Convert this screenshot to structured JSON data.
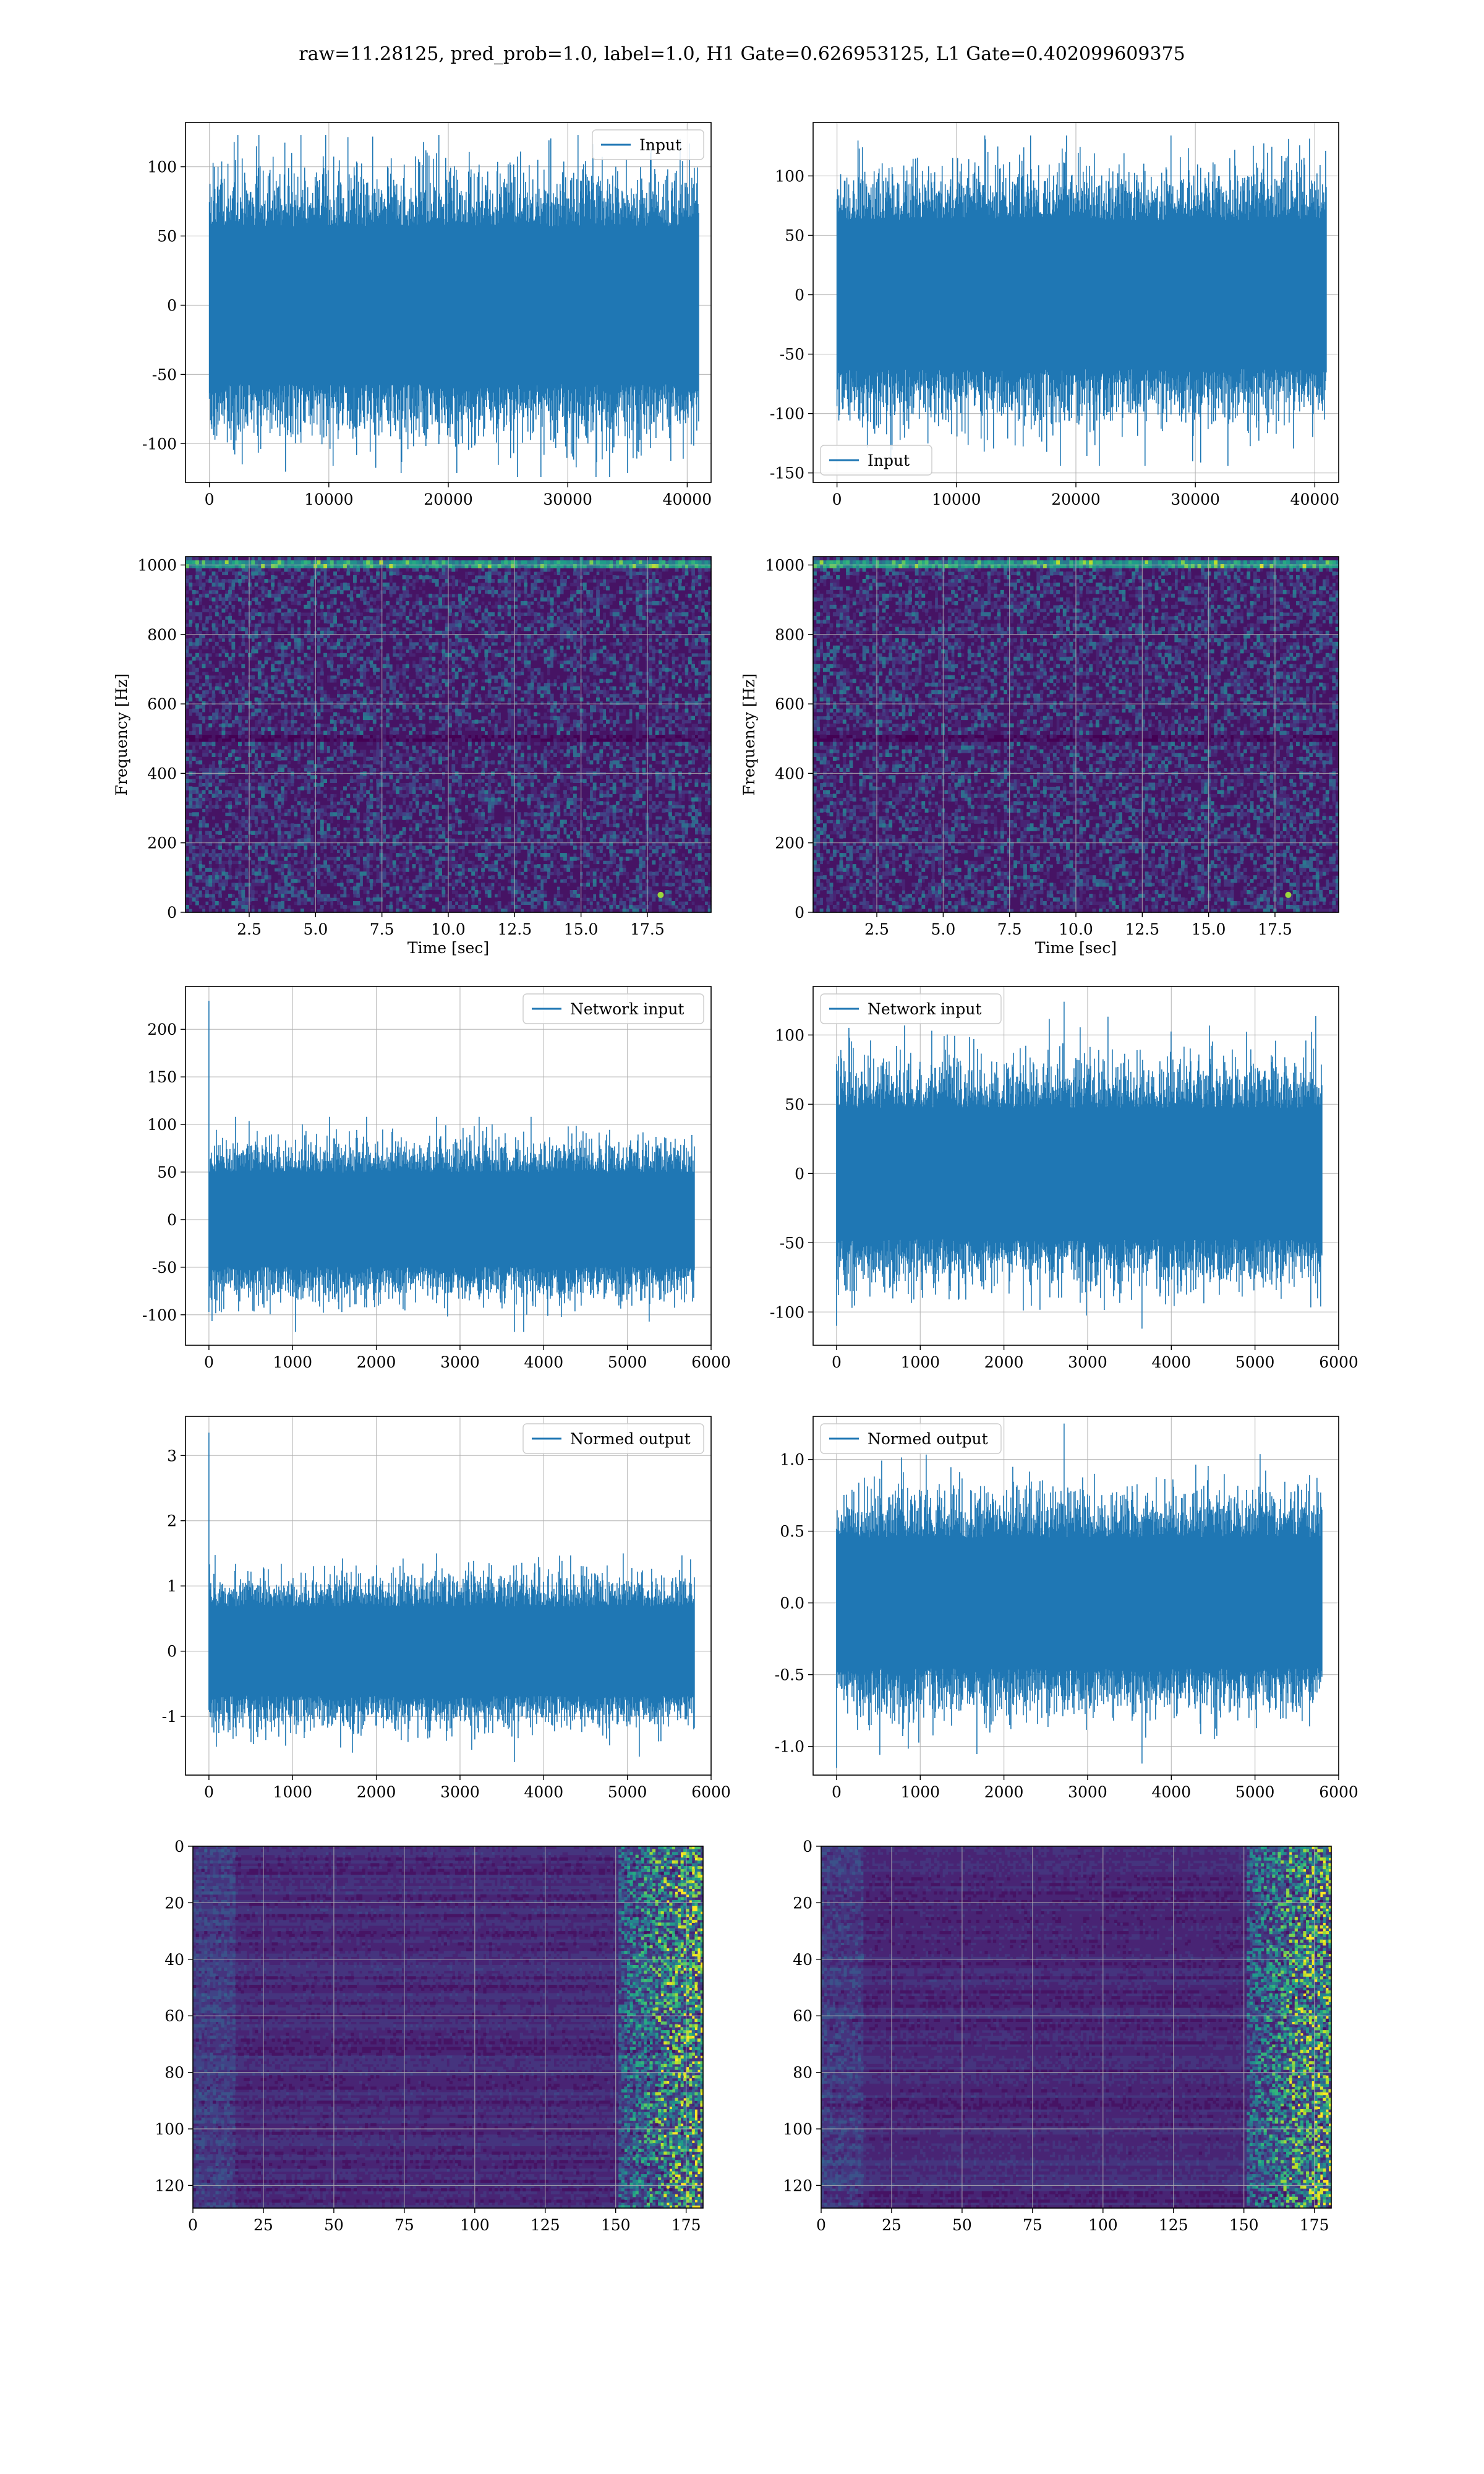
{
  "figure_title": "raw=11.28125, pred_prob=1.0, label=1.0, H1 Gate=0.626953125, L1 Gate=0.402099609375",
  "colors": {
    "line": "#1f77b4",
    "grid": "#b0b0b0",
    "axis": "#000000",
    "viridis_dark": "#440154",
    "viridis_bright": "#fde725"
  },
  "chart_data": [
    {
      "id": "h1-input",
      "type": "line",
      "legend": "Input",
      "legend_loc": "upper-right",
      "xlim": [
        -2000,
        42000
      ],
      "ylim": [
        -128,
        132
      ],
      "xticks": [
        0,
        10000,
        20000,
        30000,
        40000
      ],
      "yticks": [
        -100,
        -50,
        0,
        50,
        100
      ],
      "signal": {
        "n": 40960,
        "std": 30,
        "max": 123,
        "min": -124,
        "start_spike": 0
      },
      "grid": true
    },
    {
      "id": "l1-input",
      "type": "line",
      "legend": "Input",
      "legend_loc": "lower-left",
      "xlim": [
        -2000,
        42000
      ],
      "ylim": [
        -158,
        145
      ],
      "xticks": [
        0,
        10000,
        20000,
        30000,
        40000
      ],
      "yticks": [
        -150,
        -100,
        -50,
        0,
        50,
        100
      ],
      "signal": {
        "n": 40960,
        "std": 33,
        "max": 134,
        "min": -144,
        "start_spike": 0
      },
      "grid": true
    },
    {
      "id": "h1-spectrogram",
      "type": "heatmap",
      "xlabel": "Time [sec]",
      "ylabel": "Frequency [Hz]",
      "xlim": [
        0.1,
        19.9
      ],
      "ylim": [
        0,
        1024
      ],
      "xticks": [
        2.5,
        5.0,
        7.5,
        10.0,
        12.5,
        15.0,
        17.5
      ],
      "yticks": [
        0,
        200,
        400,
        600,
        800,
        1000
      ],
      "features": {
        "dark_band_hz": 500,
        "top_line_hz": 1000,
        "hotspot": [
          18.0,
          50
        ]
      },
      "grid": true
    },
    {
      "id": "l1-spectrogram",
      "type": "heatmap",
      "xlabel": "Time [sec]",
      "ylabel": "Frequency [Hz]",
      "xlim": [
        0.1,
        19.9
      ],
      "ylim": [
        0,
        1024
      ],
      "xticks": [
        2.5,
        5.0,
        7.5,
        10.0,
        12.5,
        15.0,
        17.5
      ],
      "yticks": [
        0,
        200,
        400,
        600,
        800,
        1000
      ],
      "features": {
        "dark_band_hz": 500,
        "top_line_hz": 1005,
        "hotspot": [
          18.0,
          50
        ]
      },
      "grid": true
    },
    {
      "id": "h1-network-input",
      "type": "line",
      "legend": "Network input",
      "legend_loc": "upper-right",
      "xlim": [
        -280,
        6000
      ],
      "ylim": [
        -132,
        245
      ],
      "xticks": [
        0,
        1000,
        2000,
        3000,
        4000,
        5000,
        6000
      ],
      "yticks": [
        -100,
        -50,
        0,
        50,
        100,
        150,
        200
      ],
      "signal": {
        "n": 5800,
        "std": 26,
        "max": 108,
        "min": -118,
        "start_spike": 230
      },
      "grid": true
    },
    {
      "id": "l1-network-input",
      "type": "line",
      "legend": "Network input",
      "legend_loc": "upper-left",
      "xlim": [
        -280,
        6000
      ],
      "ylim": [
        -124,
        135
      ],
      "xticks": [
        0,
        1000,
        2000,
        3000,
        4000,
        5000,
        6000
      ],
      "yticks": [
        -100,
        -50,
        0,
        50,
        100
      ],
      "signal": {
        "n": 5800,
        "std": 25,
        "max": 124,
        "min": -112,
        "start_spike": -110
      },
      "grid": true
    },
    {
      "id": "h1-normed-output",
      "type": "line",
      "legend": "Normed output",
      "legend_loc": "upper-right",
      "xlim": [
        -280,
        6000
      ],
      "ylim": [
        -1.9,
        3.6
      ],
      "xticks": [
        0,
        1000,
        2000,
        3000,
        4000,
        5000,
        6000
      ],
      "yticks": [
        -1,
        0,
        1,
        2,
        3
      ],
      "signal": {
        "n": 5800,
        "std": 0.36,
        "max": 1.5,
        "min": -1.7,
        "start_spike": 3.35
      },
      "grid": true
    },
    {
      "id": "l1-normed-output",
      "type": "line",
      "legend": "Normed output",
      "legend_loc": "upper-left",
      "xlim": [
        -280,
        6000
      ],
      "ylim": [
        -1.2,
        1.3
      ],
      "xticks": [
        0,
        1000,
        2000,
        3000,
        4000,
        5000,
        6000
      ],
      "yticks": [
        -1.0,
        -0.5,
        0.0,
        0.5,
        1.0
      ],
      "signal": {
        "n": 5800,
        "std": 0.24,
        "max": 1.25,
        "min": -1.12,
        "start_spike": -1.15
      },
      "grid": true
    },
    {
      "id": "h1-feature-map",
      "type": "heatmap",
      "xlim": [
        0,
        181
      ],
      "ylim": [
        128,
        0
      ],
      "xticks": [
        0,
        25,
        50,
        75,
        100,
        125,
        150,
        175
      ],
      "yticks": [
        0,
        20,
        40,
        60,
        80,
        100,
        120
      ],
      "features": {
        "bright_from_x": 150
      },
      "grid": true
    },
    {
      "id": "l1-feature-map",
      "type": "heatmap",
      "xlim": [
        0,
        181
      ],
      "ylim": [
        128,
        0
      ],
      "xticks": [
        0,
        25,
        50,
        75,
        100,
        125,
        150,
        175
      ],
      "yticks": [
        0,
        20,
        40,
        60,
        80,
        100,
        120
      ],
      "features": {
        "bright_from_x": 150
      },
      "grid": true
    }
  ]
}
